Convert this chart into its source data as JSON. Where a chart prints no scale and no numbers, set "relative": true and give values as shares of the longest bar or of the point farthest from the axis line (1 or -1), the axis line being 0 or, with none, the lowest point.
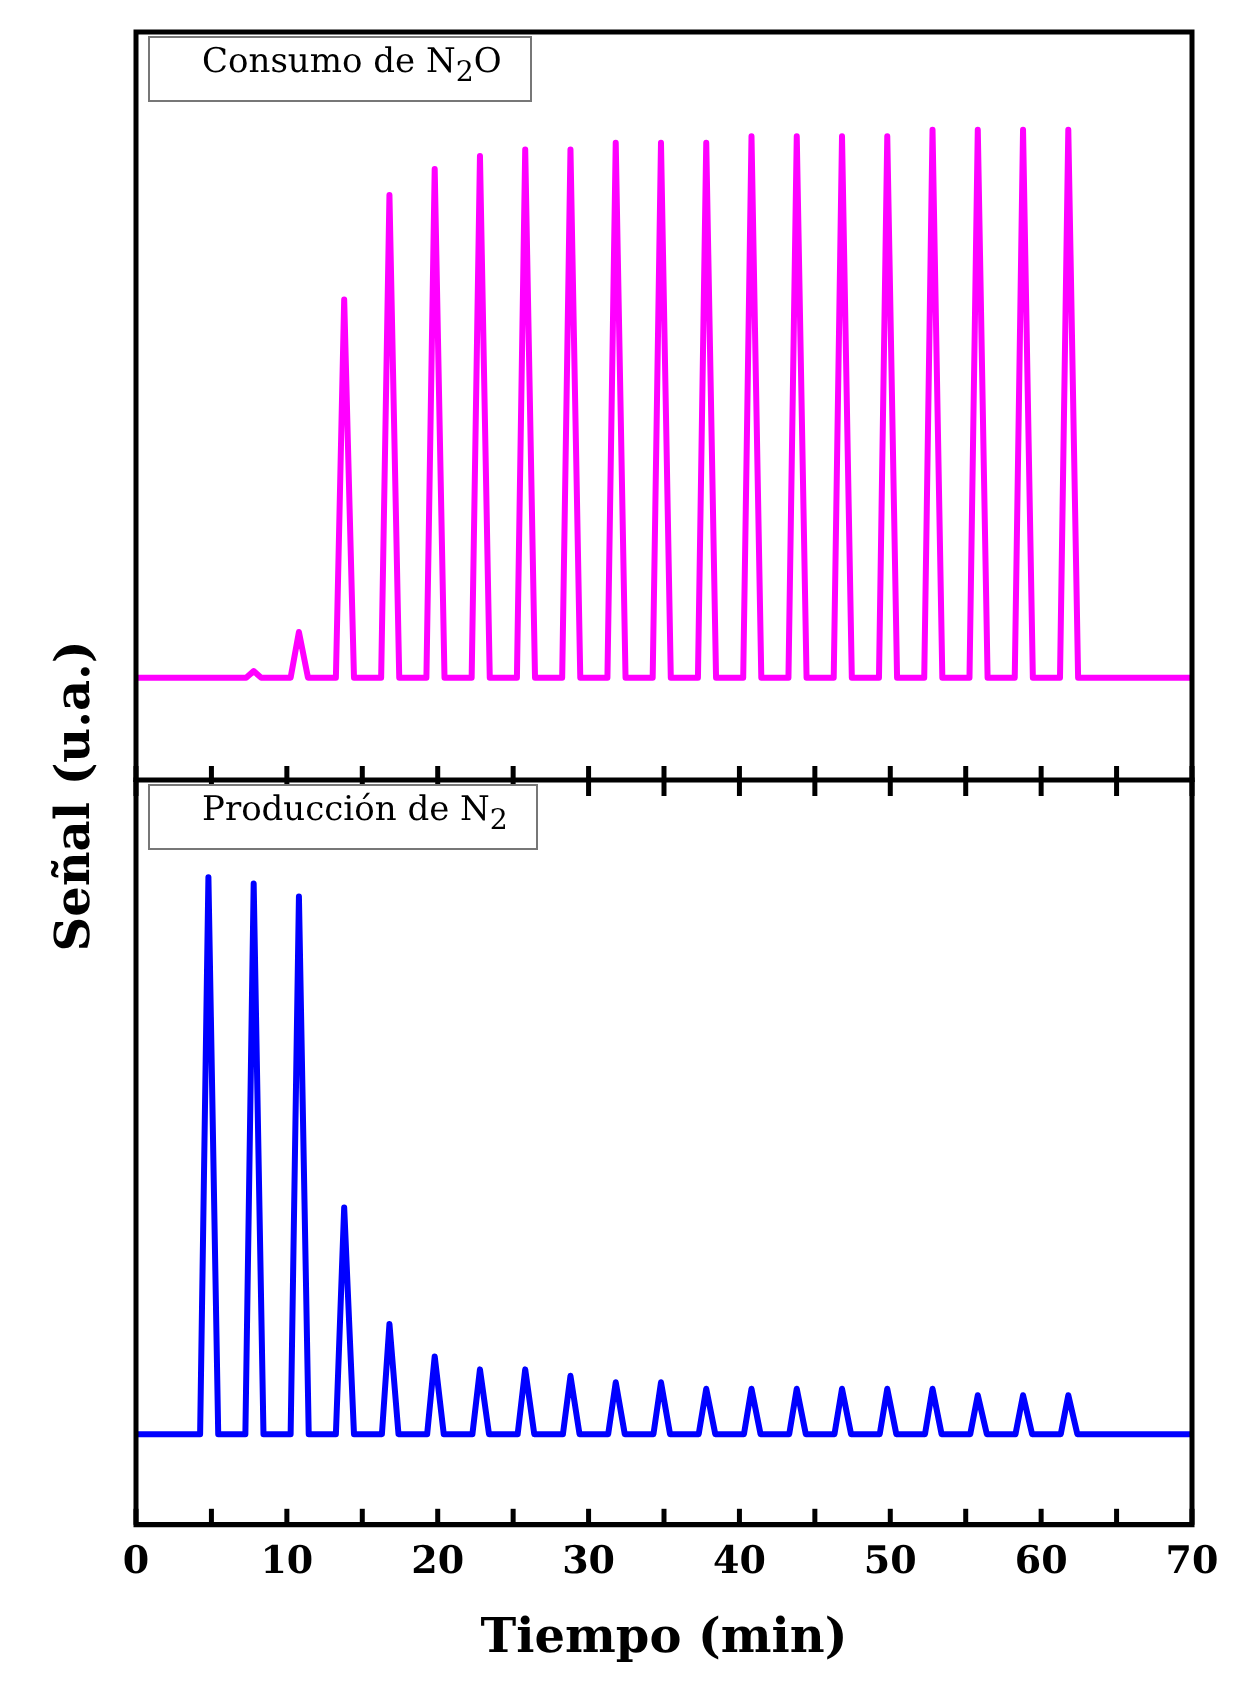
{
  "chart_data": [
    {
      "type": "line",
      "title": "Consumo de N$_{2}$O",
      "ylabel": "Señal (u.a.)",
      "relative": true,
      "marker": "none",
      "line_style": "solid",
      "tick_labels": false,
      "xlim": [
        0,
        70
      ],
      "xticks": [
        0,
        {
          "value": 5,
          "label": null
        },
        10,
        {
          "value": 15,
          "label": null
        },
        20,
        {
          "value": 25,
          "label": null
        },
        30,
        {
          "value": 35,
          "label": null
        },
        40,
        {
          "value": 45,
          "label": null
        },
        50,
        {
          "value": 55,
          "label": null
        },
        60,
        {
          "value": 65,
          "label": null
        },
        70
      ],
      "series": [
        {
          "color": "#ff00ff",
          "x": [
            0,
            7.3,
            7.8,
            8.3,
            10.25,
            10.8,
            11.4,
            13.25,
            13.8,
            14.45,
            16.25,
            16.8,
            17.45,
            19.25,
            19.8,
            20.45,
            22.25,
            22.8,
            23.45,
            25.25,
            25.8,
            26.45,
            28.25,
            28.8,
            29.45,
            31.25,
            31.8,
            32.45,
            34.25,
            34.8,
            35.45,
            37.25,
            37.8,
            38.45,
            40.25,
            40.8,
            41.45,
            43.25,
            43.8,
            44.45,
            46.25,
            46.8,
            47.45,
            49.25,
            49.8,
            50.45,
            52.25,
            52.8,
            53.45,
            55.25,
            55.8,
            56.45,
            58.25,
            58.8,
            59.45,
            61.25,
            61.8,
            62.45,
            70
          ],
          "values": [
            0.16,
            0.16,
            0.17,
            0.16,
            0.16,
            0.23,
            0.16,
            0.16,
            0.74,
            0.16,
            0.16,
            0.9,
            0.16,
            0.16,
            0.94,
            0.16,
            0.16,
            0.96,
            0.16,
            0.16,
            0.97,
            0.16,
            0.16,
            0.97,
            0.16,
            0.16,
            0.98,
            0.16,
            0.16,
            0.98,
            0.16,
            0.16,
            0.98,
            0.16,
            0.16,
            0.99,
            0.16,
            0.16,
            0.99,
            0.16,
            0.16,
            0.99,
            0.16,
            0.16,
            0.99,
            0.16,
            0.16,
            1.0,
            0.16,
            0.16,
            1.0,
            0.16,
            0.16,
            1.0,
            0.16,
            0.16,
            1.0,
            0.16,
            0.16
          ]
        }
      ]
    },
    {
      "type": "line",
      "title": "Producción de N$_{2}$",
      "xlabel": "Tiempo (min)",
      "relative": true,
      "marker": "none",
      "line_style": "solid",
      "tick_labels": "x",
      "xlim": [
        0,
        70
      ],
      "xticks": [
        0,
        {
          "value": 5,
          "label": null
        },
        10,
        {
          "value": 15,
          "label": null
        },
        20,
        {
          "value": 25,
          "label": null
        },
        30,
        {
          "value": 35,
          "label": null
        },
        40,
        {
          "value": 45,
          "label": null
        },
        50,
        {
          "value": 55,
          "label": null
        },
        60,
        {
          "value": 65,
          "label": null
        },
        70
      ],
      "series": [
        {
          "color": "#0000ff",
          "x": [
            0,
            4.25,
            4.8,
            5.45,
            7.25,
            7.8,
            8.45,
            10.25,
            10.8,
            11.45,
            13.25,
            13.8,
            14.45,
            16.3,
            16.8,
            17.4,
            19.3,
            19.8,
            20.4,
            22.3,
            22.8,
            23.4,
            25.3,
            25.8,
            26.4,
            28.3,
            28.8,
            29.4,
            31.3,
            31.8,
            32.4,
            34.3,
            34.8,
            35.4,
            37.3,
            37.8,
            38.4,
            40.3,
            40.8,
            41.4,
            43.3,
            43.8,
            44.4,
            46.3,
            46.8,
            47.4,
            49.3,
            49.8,
            50.4,
            52.3,
            52.8,
            53.4,
            55.3,
            55.8,
            56.4,
            58.3,
            58.8,
            59.4,
            61.3,
            61.8,
            62.4,
            70
          ],
          "values": [
            0.14,
            0.14,
            1.0,
            0.14,
            0.14,
            0.99,
            0.14,
            0.14,
            0.97,
            0.14,
            0.14,
            0.49,
            0.14,
            0.14,
            0.31,
            0.14,
            0.14,
            0.26,
            0.14,
            0.14,
            0.24,
            0.14,
            0.14,
            0.24,
            0.14,
            0.14,
            0.23,
            0.14,
            0.14,
            0.22,
            0.14,
            0.14,
            0.22,
            0.14,
            0.14,
            0.21,
            0.14,
            0.14,
            0.21,
            0.14,
            0.14,
            0.21,
            0.14,
            0.14,
            0.21,
            0.14,
            0.14,
            0.21,
            0.14,
            0.14,
            0.21,
            0.14,
            0.14,
            0.2,
            0.14,
            0.14,
            0.2,
            0.14,
            0.14,
            0.2,
            0.14,
            0.14
          ]
        }
      ]
    }
  ]
}
